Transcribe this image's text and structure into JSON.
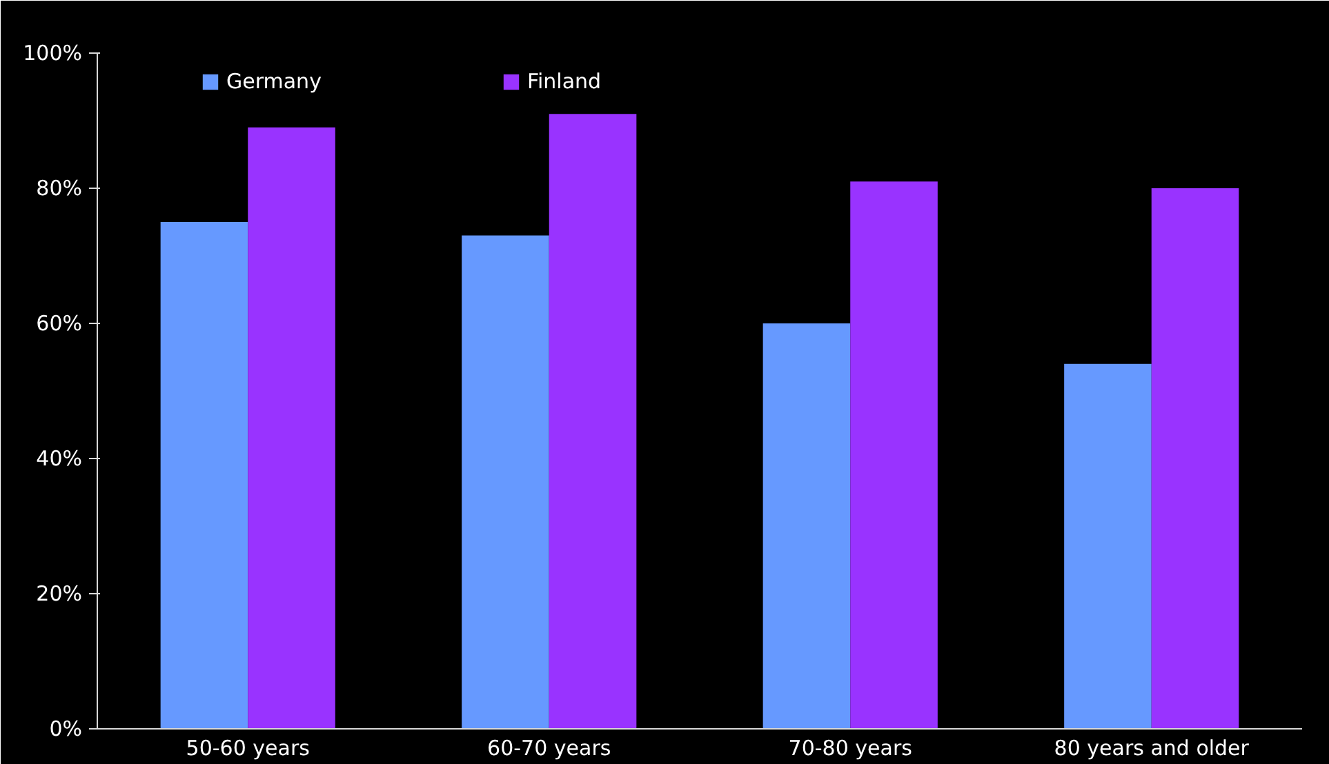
{
  "chart_data": {
    "type": "bar",
    "categories": [
      "50-60 years",
      "60-70 years",
      "70-80 years",
      "80 years and older"
    ],
    "series": [
      {
        "name": "Germany",
        "color": "#6699ff",
        "values": [
          75,
          73,
          60,
          54
        ]
      },
      {
        "name": "Finland",
        "color": "#9933ff",
        "values": [
          89,
          91,
          81,
          80
        ]
      }
    ],
    "ylim": [
      0,
      100
    ],
    "yticks": [
      {
        "value": 0,
        "label": "0%"
      },
      {
        "value": 20,
        "label": "20%"
      },
      {
        "value": 40,
        "label": "40%"
      },
      {
        "value": 60,
        "label": "60%"
      },
      {
        "value": 80,
        "label": "80%"
      },
      {
        "value": 100,
        "label": "100%"
      }
    ],
    "grid": false,
    "legend": "top"
  }
}
